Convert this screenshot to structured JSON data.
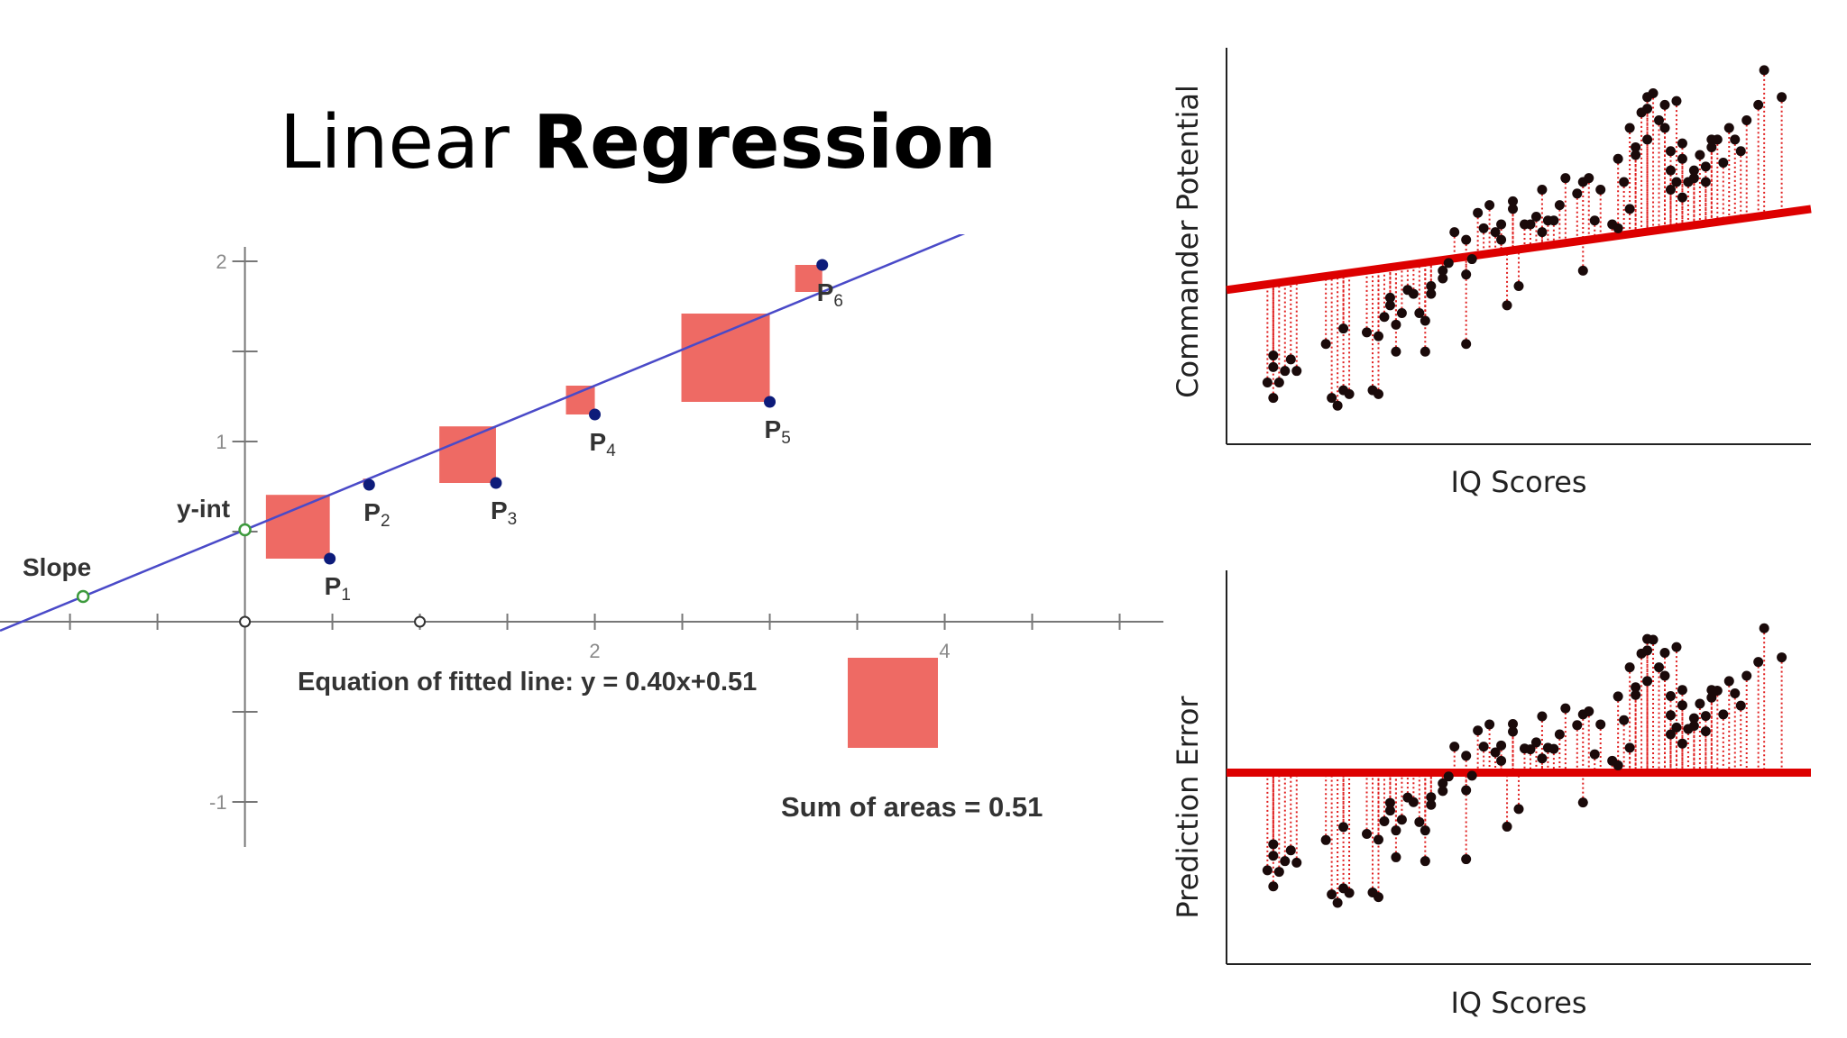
{
  "title": {
    "light": "Linear",
    "bold": "Regression"
  },
  "chart_data": [
    {
      "type": "scatter",
      "xlim": [
        -2.8,
        10.5
      ],
      "ylim": [
        -1.35,
        2.15
      ],
      "xticks": [
        -2,
        -1,
        0,
        1,
        2,
        3,
        4,
        5,
        6,
        7,
        8,
        9,
        10
      ],
      "xtick_labels": [
        {
          "x": 4,
          "label": "2"
        },
        {
          "x": 8,
          "label": "4"
        }
      ],
      "yticks": [
        -1,
        -0.5,
        0.5,
        1,
        1.5,
        2
      ],
      "ytick_labels": [
        {
          "y": 2,
          "label": "2"
        },
        {
          "y": 1,
          "label": "1"
        },
        {
          "y": -1,
          "label": "-1"
        }
      ],
      "line": {
        "slope": 0.2,
        "intercept": 0.51
      },
      "points": [
        {
          "name": "P",
          "sub": "1",
          "x": 0.97,
          "y": 0.35
        },
        {
          "name": "P",
          "sub": "2",
          "x": 1.42,
          "y": 0.76
        },
        {
          "name": "P",
          "sub": "3",
          "x": 2.87,
          "y": 0.77
        },
        {
          "name": "P",
          "sub": "4",
          "x": 4.0,
          "y": 1.15
        },
        {
          "name": "P",
          "sub": "5",
          "x": 6.0,
          "y": 1.22
        },
        {
          "name": "P",
          "sub": "6",
          "x": 6.6,
          "y": 1.98
        }
      ],
      "slope_point": {
        "label": "Slope",
        "x": -1.85,
        "y": 0.14
      },
      "yint_point": {
        "label": "y-int",
        "x": 0,
        "y": 0.51
      },
      "origin_points": [
        {
          "x": 0,
          "y": 0
        },
        {
          "x": 2,
          "y": 0
        }
      ],
      "equation": "Equation of fitted line: y = 0.40x+0.51",
      "sum_of_areas": "Sum of areas = 0.51",
      "sum_of_areas_value": 0.51
    },
    {
      "type": "scatter",
      "xlabel": "IQ Scores",
      "ylabel": "Commander Potential",
      "xlim": [
        0,
        100
      ],
      "ylim": [
        0,
        100
      ],
      "residual_lines": "red dotted vertical",
      "line": {
        "slope": 0.21,
        "intercept": 40,
        "color": "#dd0000"
      },
      "points": [
        [
          7,
          16
        ],
        [
          8,
          12
        ],
        [
          8,
          20
        ],
        [
          8,
          23
        ],
        [
          9,
          16
        ],
        [
          10,
          19
        ],
        [
          11,
          22
        ],
        [
          12,
          19
        ],
        [
          17,
          26
        ],
        [
          18,
          12
        ],
        [
          19,
          10
        ],
        [
          20,
          14
        ],
        [
          20,
          30
        ],
        [
          21,
          13
        ],
        [
          25,
          14
        ],
        [
          26,
          13
        ],
        [
          24,
          29
        ],
        [
          26,
          28
        ],
        [
          27,
          33
        ],
        [
          28,
          38
        ],
        [
          28,
          36
        ],
        [
          29,
          31
        ],
        [
          29,
          24
        ],
        [
          30,
          34
        ],
        [
          31,
          40
        ],
        [
          32,
          39
        ],
        [
          33,
          34
        ],
        [
          34,
          24
        ],
        [
          34,
          32
        ],
        [
          35,
          41
        ],
        [
          35,
          39
        ],
        [
          37,
          45
        ],
        [
          37,
          43
        ],
        [
          38,
          47
        ],
        [
          39,
          55
        ],
        [
          41,
          26
        ],
        [
          41,
          44
        ],
        [
          41,
          53
        ],
        [
          42,
          48
        ],
        [
          43,
          60
        ],
        [
          44,
          56
        ],
        [
          45,
          62
        ],
        [
          46,
          55
        ],
        [
          47,
          57
        ],
        [
          47,
          53
        ],
        [
          48,
          36
        ],
        [
          49,
          61
        ],
        [
          49,
          63
        ],
        [
          50,
          41
        ],
        [
          51,
          57
        ],
        [
          52,
          57
        ],
        [
          53,
          59
        ],
        [
          54,
          55
        ],
        [
          54,
          66
        ],
        [
          55,
          58
        ],
        [
          56,
          58
        ],
        [
          57,
          62
        ],
        [
          58,
          69
        ],
        [
          60,
          65
        ],
        [
          61,
          45
        ],
        [
          61,
          68
        ],
        [
          62,
          69
        ],
        [
          63,
          58
        ],
        [
          64,
          66
        ],
        [
          66,
          57
        ],
        [
          67,
          56
        ],
        [
          67,
          74
        ],
        [
          68,
          68
        ],
        [
          69,
          82
        ],
        [
          69,
          61
        ],
        [
          70,
          77
        ],
        [
          70,
          75
        ],
        [
          71,
          86
        ],
        [
          72,
          90
        ],
        [
          72,
          87
        ],
        [
          72,
          79
        ],
        [
          73,
          91
        ],
        [
          74,
          84
        ],
        [
          75,
          88
        ],
        [
          75,
          82
        ],
        [
          76,
          66
        ],
        [
          76,
          71
        ],
        [
          76,
          76
        ],
        [
          77,
          89
        ],
        [
          77,
          68
        ],
        [
          78,
          64
        ],
        [
          78,
          74
        ],
        [
          78,
          78
        ],
        [
          79,
          68
        ],
        [
          80,
          71
        ],
        [
          80,
          69
        ],
        [
          81,
          75
        ],
        [
          82,
          68
        ],
        [
          82,
          72
        ],
        [
          83,
          77
        ],
        [
          83,
          79
        ],
        [
          84,
          79
        ],
        [
          85,
          73
        ],
        [
          86,
          82
        ],
        [
          87,
          79
        ],
        [
          88,
          76
        ],
        [
          89,
          84
        ],
        [
          91,
          88
        ],
        [
          92,
          97
        ],
        [
          95,
          90
        ]
      ]
    },
    {
      "type": "scatter",
      "xlabel": "IQ Scores",
      "ylabel": "Prediction Error",
      "xlim": [
        0,
        100
      ],
      "ylim": [
        -50,
        50
      ],
      "residual_lines": "red dotted vertical",
      "line": {
        "slope": 0,
        "intercept": 0,
        "color": "#dd0000"
      },
      "points": [
        [
          7,
          -25.5
        ],
        [
          8,
          -29.7
        ],
        [
          8,
          -21.7
        ],
        [
          8,
          -18.7
        ],
        [
          9,
          -25.9
        ],
        [
          10,
          -23.1
        ],
        [
          11,
          -20.3
        ],
        [
          12,
          -23.5
        ],
        [
          17,
          -17.6
        ],
        [
          18,
          -31.8
        ],
        [
          19,
          -34.0
        ],
        [
          20,
          -30.2
        ],
        [
          20,
          -14.2
        ],
        [
          21,
          -31.4
        ],
        [
          25,
          -31.3
        ],
        [
          26,
          -32.5
        ],
        [
          24,
          -16.0
        ],
        [
          26,
          -17.5
        ],
        [
          27,
          -12.7
        ],
        [
          28,
          -7.9
        ],
        [
          28,
          -9.9
        ],
        [
          29,
          -15.1
        ],
        [
          29,
          -22.1
        ],
        [
          30,
          -12.3
        ],
        [
          31,
          -6.5
        ],
        [
          32,
          -7.7
        ],
        [
          33,
          -12.9
        ],
        [
          34,
          -23.1
        ],
        [
          34,
          -15.1
        ],
        [
          35,
          -6.4
        ],
        [
          35,
          -8.4
        ],
        [
          37,
          -2.8
        ],
        [
          37,
          -4.8
        ],
        [
          38,
          -1.0
        ],
        [
          39,
          6.8
        ],
        [
          41,
          -22.6
        ],
        [
          41,
          -4.6
        ],
        [
          41,
          4.4
        ],
        [
          42,
          -0.8
        ],
        [
          43,
          11.0
        ],
        [
          44,
          6.8
        ],
        [
          45,
          12.6
        ],
        [
          46,
          5.3
        ],
        [
          47,
          7.1
        ],
        [
          47,
          3.1
        ],
        [
          48,
          -14.1
        ],
        [
          49,
          10.7
        ],
        [
          49,
          12.7
        ],
        [
          50,
          -9.5
        ],
        [
          51,
          6.3
        ],
        [
          52,
          6.1
        ],
        [
          53,
          7.9
        ],
        [
          54,
          3.7
        ],
        [
          54,
          14.7
        ],
        [
          55,
          6.5
        ],
        [
          56,
          6.2
        ],
        [
          57,
          10.0
        ],
        [
          58,
          16.8
        ],
        [
          60,
          12.4
        ],
        [
          61,
          -7.8
        ],
        [
          61,
          15.2
        ],
        [
          62,
          16.0
        ],
        [
          63,
          4.8
        ],
        [
          64,
          12.6
        ],
        [
          66,
          3.1
        ],
        [
          67,
          1.9
        ],
        [
          67,
          19.9
        ],
        [
          68,
          13.7
        ],
        [
          69,
          27.5
        ],
        [
          69,
          6.5
        ],
        [
          70,
          22.3
        ],
        [
          70,
          20.3
        ],
        [
          71,
          31.1
        ],
        [
          72,
          34.9
        ],
        [
          72,
          31.9
        ],
        [
          72,
          23.9
        ],
        [
          73,
          34.7
        ],
        [
          74,
          27.5
        ],
        [
          75,
          31.3
        ],
        [
          75,
          25.3
        ],
        [
          76,
          10.0
        ],
        [
          76,
          15.0
        ],
        [
          76,
          20.0
        ],
        [
          77,
          32.8
        ],
        [
          77,
          11.8
        ],
        [
          78,
          7.6
        ],
        [
          78,
          17.6
        ],
        [
          78,
          21.6
        ],
        [
          79,
          11.4
        ],
        [
          80,
          14.2
        ],
        [
          80,
          12.2
        ],
        [
          81,
          18.0
        ],
        [
          82,
          10.8
        ],
        [
          82,
          14.8
        ],
        [
          83,
          19.6
        ],
        [
          83,
          21.6
        ],
        [
          84,
          21.4
        ],
        [
          85,
          15.2
        ],
        [
          86,
          23.9
        ],
        [
          87,
          20.7
        ],
        [
          88,
          17.5
        ],
        [
          89,
          25.3
        ],
        [
          91,
          28.9
        ],
        [
          92,
          37.7
        ],
        [
          95,
          30.1
        ]
      ]
    }
  ]
}
